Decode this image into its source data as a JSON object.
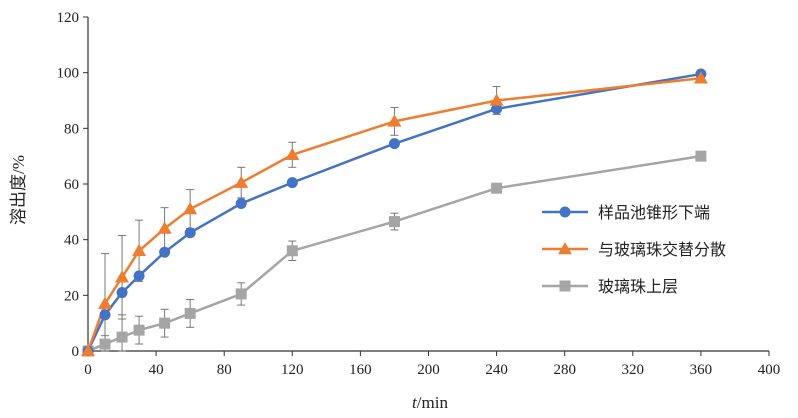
{
  "chart_data": {
    "type": "line",
    "title": "",
    "xlabel": {
      "italic": "t",
      "rest": "/min"
    },
    "ylabel": "溶出度/%",
    "xlim": [
      0,
      400
    ],
    "ylim": [
      0,
      120
    ],
    "x_ticks": [
      0,
      40,
      80,
      120,
      160,
      200,
      240,
      280,
      320,
      360,
      400
    ],
    "y_ticks": [
      0,
      20,
      40,
      60,
      80,
      100,
      120
    ],
    "grid": false,
    "legend_position": "right",
    "series": [
      {
        "name": "样品池锥形下端",
        "color": "#4472C4",
        "marker": "circle",
        "x": [
          0,
          10,
          20,
          30,
          45,
          60,
          90,
          120,
          180,
          240,
          360
        ],
        "y": [
          0,
          13,
          21,
          27,
          35.5,
          42.5,
          53,
          60.5,
          74.5,
          87,
          99.5
        ],
        "error": [
          0,
          0,
          0,
          0,
          0,
          0,
          0,
          0,
          0,
          0,
          0
        ]
      },
      {
        "name": "与玻璃珠交替分散",
        "color": "#ED7D31",
        "marker": "triangle",
        "x": [
          0,
          10,
          20,
          30,
          45,
          60,
          90,
          120,
          180,
          240,
          360
        ],
        "y": [
          0,
          17,
          26.5,
          36,
          44,
          51,
          60.5,
          70.5,
          82.5,
          90,
          98
        ],
        "error": [
          0,
          18,
          15,
          11,
          7.5,
          7,
          5.5,
          4.5,
          5,
          5,
          0
        ]
      },
      {
        "name": "玻璃珠上层",
        "color": "#A5A5A5",
        "marker": "square",
        "x": [
          0,
          10,
          20,
          30,
          45,
          60,
          90,
          120,
          180,
          240,
          360
        ],
        "y": [
          0,
          2.5,
          5,
          7.5,
          10,
          13.5,
          20.5,
          36,
          46.5,
          58.5,
          70
        ],
        "error": [
          0,
          3,
          8,
          5,
          5,
          5,
          4,
          3.5,
          3,
          0,
          0
        ]
      }
    ]
  }
}
